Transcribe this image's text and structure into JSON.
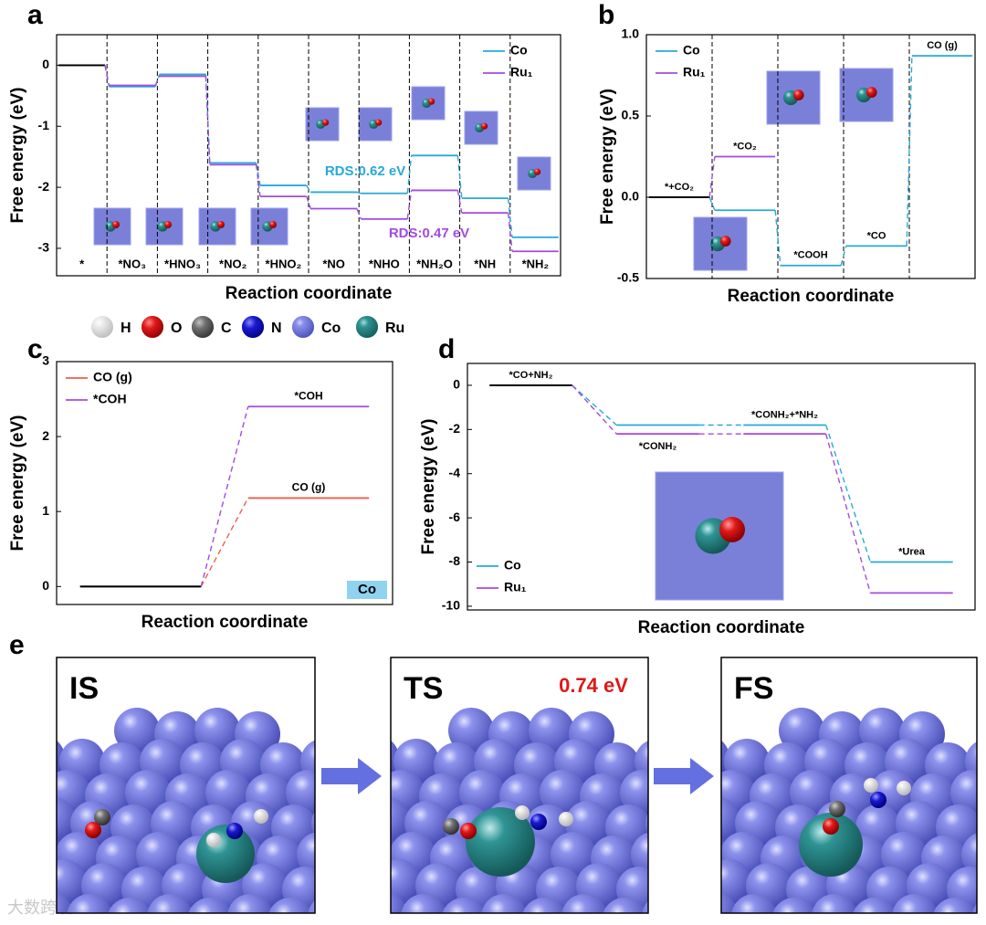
{
  "chart_data": [
    {
      "type": "energy-profile",
      "panel_label": "a",
      "xlabel": "Reaction coordinate",
      "ylabel": "Free energy (eV)",
      "categories": [
        "*",
        "*NO₃",
        "*HNO₃",
        "*NO₂",
        "*HNO₂",
        "*NO",
        "*NHO",
        "*NH₂O",
        "*NH",
        "*NH₂"
      ],
      "series": [
        {
          "name": "Co",
          "color": "#27a9d9",
          "values": [
            0,
            -0.35,
            -0.15,
            -1.6,
            -1.97,
            -2.08,
            -2.1,
            -1.48,
            -2.18,
            -2.82
          ]
        },
        {
          "name": "Ru₁",
          "color": "#a24be0",
          "values": [
            0,
            -0.33,
            -0.18,
            -1.63,
            -2.15,
            -2.35,
            -2.52,
            -2.05,
            -2.42,
            -3.05
          ]
        }
      ],
      "ylim": [
        -3.45,
        0.5
      ],
      "yticks": [
        0,
        -1,
        -2,
        -3
      ],
      "legend": "upper right",
      "dividers": true,
      "start_color": "#000000",
      "annotations": [
        {
          "text": "RDS:0.62 eV",
          "color": "#27a9d9"
        },
        {
          "text": "RDS:0.47 eV",
          "color": "#a24be0"
        }
      ]
    },
    {
      "type": "energy-profile",
      "panel_label": "b",
      "xlabel": "Reaction coordinate",
      "ylabel": "Free energy (eV)",
      "categories": [
        "*+CO₂",
        "*CO₂",
        "*COOH",
        "*CO",
        "CO (g)"
      ],
      "series": [
        {
          "name": "Co",
          "color": "#27a9d9",
          "values": [
            0,
            -0.08,
            -0.42,
            -0.3,
            0.87
          ]
        },
        {
          "name": "Ru₁",
          "color": "#a24be0",
          "values": [
            0,
            0.25,
            null,
            null,
            null
          ]
        }
      ],
      "ylim": [
        -0.5,
        1.0
      ],
      "yticks": [
        -0.5,
        {
          "value": 0,
          "label": "0.0"
        },
        0.5,
        {
          "value": 1.0,
          "label": "1.0"
        }
      ],
      "legend": "upper left",
      "dividers": true,
      "start_color": "#000000"
    },
    {
      "type": "energy-profile",
      "panel_label": "c",
      "xlabel": "Reaction coordinate",
      "ylabel": "Free energy (eV)",
      "series": [
        {
          "name": "CO (g)",
          "color": "#e8604c",
          "values": [
            0,
            1.18
          ]
        },
        {
          "name": "*COH",
          "color": "#a24be0",
          "values": [
            0,
            2.4
          ]
        }
      ],
      "ylim": [
        -0.24,
        3
      ],
      "yticks": [
        0,
        1,
        2,
        3
      ],
      "legend": "upper left",
      "series_labels_at_end": true,
      "start_color": "#000000",
      "annotations": [
        {
          "text": "Co",
          "color": "#000000",
          "box": "#8fd3f0"
        }
      ]
    },
    {
      "type": "energy-profile",
      "panel_label": "d",
      "xlabel": "Reaction coordinate",
      "ylabel": "Free energy (eV)",
      "categories": [
        "*CO+NH₂",
        "*CONH₂",
        "*CONH₂+*NH₂",
        "*Urea"
      ],
      "series": [
        {
          "name": "Co",
          "color": "#27a9d9",
          "values": [
            0,
            -1.8,
            -1.8,
            -8.0
          ]
        },
        {
          "name": "Ru₁",
          "color": "#a24be0",
          "values": [
            0,
            -2.2,
            -2.2,
            -9.4
          ]
        }
      ],
      "ylim": [
        -10.17,
        0.99
      ],
      "yticks": [
        0,
        -2,
        -4,
        -6,
        -8,
        -10
      ],
      "legend": "lower left",
      "start_color": "#000000"
    }
  ],
  "atom_legend": [
    {
      "label": "H",
      "color": "#f2f2f2"
    },
    {
      "label": "O",
      "color": "#e01818"
    },
    {
      "label": "C",
      "color": "#707070"
    },
    {
      "label": "N",
      "color": "#1a1ad0"
    },
    {
      "label": "Co",
      "color": "#7b80e0"
    },
    {
      "label": "Ru",
      "color": "#2a8c8c"
    }
  ],
  "panel_e": {
    "panel_label": "e",
    "frames": [
      "IS",
      "TS",
      "FS"
    ],
    "barrier": "0.74 eV"
  },
  "watermark": "大数跨境"
}
